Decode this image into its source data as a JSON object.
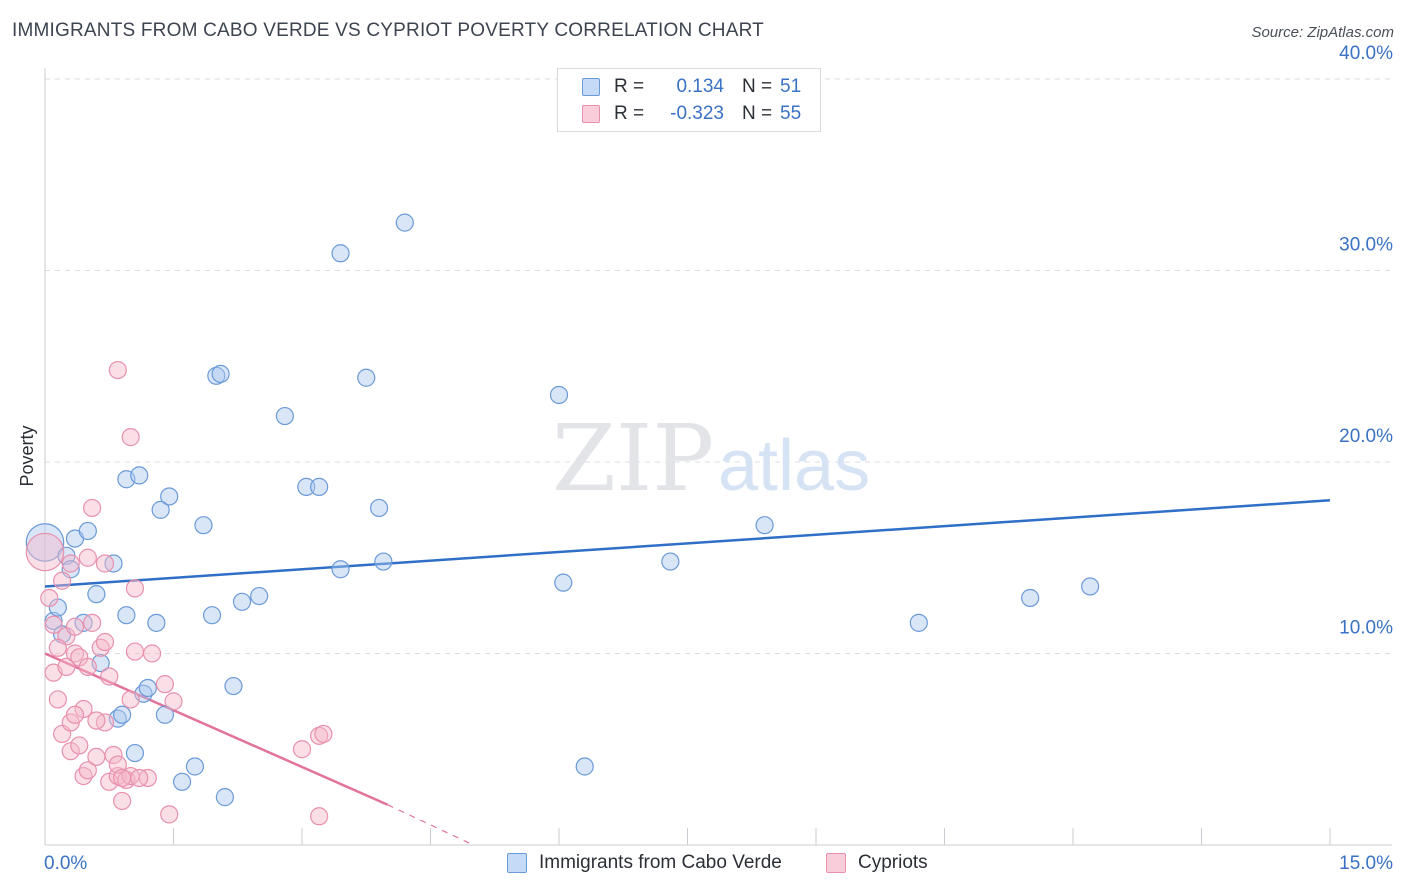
{
  "title": "IMMIGRANTS FROM CABO VERDE VS CYPRIOT POVERTY CORRELATION CHART",
  "source": "Source: ZipAtlas.com",
  "watermark": {
    "zip": "ZIP",
    "atlas": "atlas"
  },
  "colors": {
    "blue_fill": "#aac8f0",
    "blue_stroke": "#6a9ad8",
    "blue_line": "#2f6fc8",
    "pink_fill": "#f5b8ca",
    "pink_stroke": "#e890ad",
    "pink_line": "#e2739b",
    "grid": "#dcdde2",
    "tick_label": "#3a72c4"
  },
  "legend": {
    "rows": [
      {
        "r_label": "R =",
        "r_value": "0.134",
        "n_label": "N =",
        "n_value": "51"
      },
      {
        "r_label": "R =",
        "r_value": "-0.323",
        "n_label": "N =",
        "n_value": "55"
      }
    ]
  },
  "bottom_legend": [
    "Immigrants from Cabo Verde",
    "Cypriots"
  ],
  "chart_data": {
    "type": "scatter",
    "title": "IMMIGRANTS FROM CABO VERDE VS CYPRIOT POVERTY CORRELATION CHART",
    "xlabel": "",
    "ylabel": "Poverty",
    "xlim": [
      0,
      15
    ],
    "ylim": [
      0,
      40
    ],
    "x_tick_labels": [
      "0.0%",
      "15.0%"
    ],
    "y_ticks": [
      10,
      20,
      30,
      40
    ],
    "y_tick_labels": [
      "10.0%",
      "20.0%",
      "30.0%",
      "40.0%"
    ],
    "grid": true,
    "series": [
      {
        "name": "Immigrants from Cabo Verde",
        "r": 0.134,
        "n": 51,
        "trend": {
          "x": [
            0,
            15
          ],
          "y": [
            13.5,
            18.0
          ]
        },
        "points": [
          {
            "x": 0.0,
            "y": 15.8,
            "s": 2.2
          },
          {
            "x": 0.1,
            "y": 11.7,
            "s": 1
          },
          {
            "x": 0.15,
            "y": 12.4,
            "s": 1
          },
          {
            "x": 0.2,
            "y": 11.0,
            "s": 1
          },
          {
            "x": 0.25,
            "y": 15.1,
            "s": 1
          },
          {
            "x": 0.3,
            "y": 14.4,
            "s": 1
          },
          {
            "x": 0.35,
            "y": 16.0,
            "s": 1
          },
          {
            "x": 0.45,
            "y": 11.6,
            "s": 1
          },
          {
            "x": 0.5,
            "y": 16.4,
            "s": 1
          },
          {
            "x": 0.6,
            "y": 13.1,
            "s": 1
          },
          {
            "x": 0.65,
            "y": 9.5,
            "s": 1
          },
          {
            "x": 0.8,
            "y": 14.7,
            "s": 1
          },
          {
            "x": 0.85,
            "y": 6.6,
            "s": 1
          },
          {
            "x": 0.9,
            "y": 6.8,
            "s": 1
          },
          {
            "x": 0.95,
            "y": 19.1,
            "s": 1
          },
          {
            "x": 0.95,
            "y": 12.0,
            "s": 1
          },
          {
            "x": 1.05,
            "y": 4.8,
            "s": 1
          },
          {
            "x": 1.1,
            "y": 19.3,
            "s": 1
          },
          {
            "x": 1.15,
            "y": 7.9,
            "s": 1
          },
          {
            "x": 1.2,
            "y": 8.2,
            "s": 1
          },
          {
            "x": 1.3,
            "y": 11.6,
            "s": 1
          },
          {
            "x": 1.35,
            "y": 17.5,
            "s": 1
          },
          {
            "x": 1.4,
            "y": 6.8,
            "s": 1
          },
          {
            "x": 1.45,
            "y": 18.2,
            "s": 1
          },
          {
            "x": 1.6,
            "y": 3.3,
            "s": 1
          },
          {
            "x": 1.75,
            "y": 4.1,
            "s": 1
          },
          {
            "x": 1.85,
            "y": 16.7,
            "s": 1
          },
          {
            "x": 1.95,
            "y": 12.0,
            "s": 1
          },
          {
            "x": 2.0,
            "y": 24.5,
            "s": 1
          },
          {
            "x": 2.05,
            "y": 24.6,
            "s": 1
          },
          {
            "x": 2.1,
            "y": 2.5,
            "s": 1
          },
          {
            "x": 2.2,
            "y": 8.3,
            "s": 1
          },
          {
            "x": 2.3,
            "y": 12.7,
            "s": 1
          },
          {
            "x": 2.5,
            "y": 13.0,
            "s": 1
          },
          {
            "x": 2.8,
            "y": 22.4,
            "s": 1
          },
          {
            "x": 3.05,
            "y": 18.7,
            "s": 1
          },
          {
            "x": 3.2,
            "y": 18.7,
            "s": 1
          },
          {
            "x": 3.45,
            "y": 14.4,
            "s": 1
          },
          {
            "x": 3.45,
            "y": 30.9,
            "s": 1
          },
          {
            "x": 3.75,
            "y": 24.4,
            "s": 1
          },
          {
            "x": 3.9,
            "y": 17.6,
            "s": 1
          },
          {
            "x": 3.95,
            "y": 14.8,
            "s": 1
          },
          {
            "x": 4.2,
            "y": 32.5,
            "s": 1
          },
          {
            "x": 6.0,
            "y": 23.5,
            "s": 1
          },
          {
            "x": 6.05,
            "y": 13.7,
            "s": 1
          },
          {
            "x": 6.3,
            "y": 4.1,
            "s": 1
          },
          {
            "x": 7.3,
            "y": 14.8,
            "s": 1
          },
          {
            "x": 8.4,
            "y": 16.7,
            "s": 1
          },
          {
            "x": 10.2,
            "y": 11.6,
            "s": 1
          },
          {
            "x": 11.5,
            "y": 12.9,
            "s": 1
          },
          {
            "x": 12.2,
            "y": 13.5,
            "s": 1
          }
        ]
      },
      {
        "name": "Cypriots",
        "r": -0.323,
        "n": 55,
        "trend": {
          "x": [
            0,
            4.0
          ],
          "y": [
            10.0,
            2.1
          ]
        },
        "trend_dashed": {
          "x": [
            4.0,
            5.0
          ],
          "y": [
            2.1,
            0.0
          ]
        },
        "points": [
          {
            "x": 0.0,
            "y": 15.3,
            "s": 2.2
          },
          {
            "x": 0.05,
            "y": 12.9,
            "s": 1
          },
          {
            "x": 0.1,
            "y": 9.0,
            "s": 1
          },
          {
            "x": 0.1,
            "y": 11.5,
            "s": 1
          },
          {
            "x": 0.15,
            "y": 7.6,
            "s": 1
          },
          {
            "x": 0.2,
            "y": 13.8,
            "s": 1
          },
          {
            "x": 0.2,
            "y": 5.8,
            "s": 1
          },
          {
            "x": 0.25,
            "y": 10.9,
            "s": 1
          },
          {
            "x": 0.25,
            "y": 9.3,
            "s": 1
          },
          {
            "x": 0.3,
            "y": 6.4,
            "s": 1
          },
          {
            "x": 0.3,
            "y": 4.9,
            "s": 1
          },
          {
            "x": 0.3,
            "y": 14.7,
            "s": 1
          },
          {
            "x": 0.35,
            "y": 10.0,
            "s": 1
          },
          {
            "x": 0.35,
            "y": 11.4,
            "s": 1
          },
          {
            "x": 0.4,
            "y": 9.8,
            "s": 1
          },
          {
            "x": 0.4,
            "y": 5.2,
            "s": 1
          },
          {
            "x": 0.45,
            "y": 7.1,
            "s": 1
          },
          {
            "x": 0.45,
            "y": 3.6,
            "s": 1
          },
          {
            "x": 0.5,
            "y": 3.9,
            "s": 1
          },
          {
            "x": 0.5,
            "y": 9.3,
            "s": 1
          },
          {
            "x": 0.5,
            "y": 15.0,
            "s": 1
          },
          {
            "x": 0.55,
            "y": 17.6,
            "s": 1
          },
          {
            "x": 0.6,
            "y": 4.6,
            "s": 1
          },
          {
            "x": 0.65,
            "y": 10.3,
            "s": 1
          },
          {
            "x": 0.7,
            "y": 10.6,
            "s": 1
          },
          {
            "x": 0.7,
            "y": 14.7,
            "s": 1
          },
          {
            "x": 0.7,
            "y": 6.4,
            "s": 1
          },
          {
            "x": 0.75,
            "y": 3.3,
            "s": 1
          },
          {
            "x": 0.75,
            "y": 8.8,
            "s": 1
          },
          {
            "x": 0.8,
            "y": 4.7,
            "s": 1
          },
          {
            "x": 0.85,
            "y": 24.8,
            "s": 1
          },
          {
            "x": 0.85,
            "y": 3.6,
            "s": 1
          },
          {
            "x": 0.85,
            "y": 4.2,
            "s": 1
          },
          {
            "x": 0.9,
            "y": 2.3,
            "s": 1
          },
          {
            "x": 0.95,
            "y": 3.4,
            "s": 1
          },
          {
            "x": 1.0,
            "y": 21.3,
            "s": 1
          },
          {
            "x": 1.0,
            "y": 7.6,
            "s": 1
          },
          {
            "x": 1.0,
            "y": 3.6,
            "s": 1
          },
          {
            "x": 1.05,
            "y": 13.4,
            "s": 1
          },
          {
            "x": 1.05,
            "y": 10.1,
            "s": 1
          },
          {
            "x": 1.2,
            "y": 3.5,
            "s": 1
          },
          {
            "x": 1.25,
            "y": 10.0,
            "s": 1
          },
          {
            "x": 1.4,
            "y": 8.4,
            "s": 1
          },
          {
            "x": 1.45,
            "y": 1.6,
            "s": 1
          },
          {
            "x": 1.5,
            "y": 7.5,
            "s": 1
          },
          {
            "x": 3.0,
            "y": 5.0,
            "s": 1
          },
          {
            "x": 3.2,
            "y": 5.7,
            "s": 1
          },
          {
            "x": 3.25,
            "y": 5.8,
            "s": 1
          },
          {
            "x": 3.2,
            "y": 1.5,
            "s": 1
          },
          {
            "x": 0.15,
            "y": 10.3,
            "s": 1
          },
          {
            "x": 0.6,
            "y": 6.5,
            "s": 1
          },
          {
            "x": 0.9,
            "y": 3.5,
            "s": 1
          },
          {
            "x": 0.35,
            "y": 6.8,
            "s": 1
          },
          {
            "x": 1.1,
            "y": 3.5,
            "s": 1
          },
          {
            "x": 0.55,
            "y": 11.6,
            "s": 1
          }
        ]
      }
    ]
  }
}
